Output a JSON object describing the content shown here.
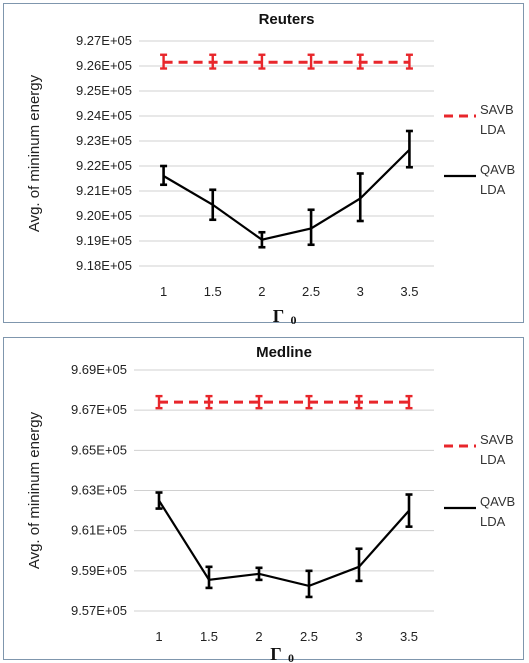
{
  "chart_data": [
    {
      "type": "line",
      "title": "Reuters",
      "ylabel": "Avg. of mininum energy",
      "xlabel": "Γ",
      "xlabel_sub": "0",
      "categories": [
        "1",
        "1.5",
        "2",
        "2.5",
        "3",
        "3.5"
      ],
      "ylim": [
        918000,
        927000
      ],
      "yticks": [
        918000,
        919000,
        920000,
        921000,
        922000,
        923000,
        924000,
        925000,
        926000,
        927000
      ],
      "ytick_labels": [
        "9.18E+05",
        "9.19E+05",
        "9.20E+05",
        "9.21E+05",
        "9.22E+05",
        "9.23E+05",
        "9.24E+05",
        "9.25E+05",
        "9.26E+05",
        "9.27E+05"
      ],
      "grid": true,
      "legend": "right",
      "series": [
        {
          "name": "SAVB LDA",
          "style": "dashed",
          "color": "#e8262b",
          "values": [
            926150,
            926150,
            926150,
            926150,
            926150,
            926150
          ],
          "err_low": [
            925900,
            925900,
            925900,
            925900,
            925900,
            925900
          ],
          "err_high": [
            926450,
            926450,
            926450,
            926450,
            926450,
            926450
          ]
        },
        {
          "name": "QAVB LDA",
          "style": "solid",
          "color": "#000000",
          "values": [
            921600,
            920450,
            919050,
            919500,
            920700,
            922650
          ],
          "err_low": [
            921250,
            919850,
            918750,
            918850,
            919800,
            921950
          ],
          "err_high": [
            922000,
            921050,
            919350,
            920250,
            921700,
            923400
          ]
        }
      ]
    },
    {
      "type": "line",
      "title": "Medline",
      "ylabel": "Avg. of mininum energy",
      "xlabel": "Γ",
      "xlabel_sub": "0",
      "categories": [
        "1",
        "1.5",
        "2",
        "2.5",
        "3",
        "3.5"
      ],
      "ylim": [
        957000,
        969000
      ],
      "yticks": [
        957000,
        959000,
        961000,
        963000,
        965000,
        967000,
        969000
      ],
      "ytick_labels": [
        "9.57E+05",
        "9.59E+05",
        "9.61E+05",
        "9.63E+05",
        "9.65E+05",
        "9.67E+05",
        "9.69E+05"
      ],
      "grid": true,
      "legend": "right",
      "series": [
        {
          "name": "SAVB LDA",
          "style": "dashed",
          "color": "#e8262b",
          "values": [
            967400,
            967400,
            967400,
            967400,
            967400,
            967400
          ],
          "err_low": [
            967100,
            967100,
            967100,
            967100,
            967100,
            967100
          ],
          "err_high": [
            967700,
            967700,
            967700,
            967700,
            967700,
            967700
          ]
        },
        {
          "name": "QAVB LDA",
          "style": "solid",
          "color": "#000000",
          "values": [
            962500,
            958550,
            958850,
            958250,
            959200,
            962000
          ],
          "err_low": [
            962100,
            958150,
            958550,
            957700,
            958500,
            961200
          ],
          "err_high": [
            962900,
            959200,
            959150,
            959000,
            960100,
            962800
          ]
        }
      ]
    }
  ]
}
